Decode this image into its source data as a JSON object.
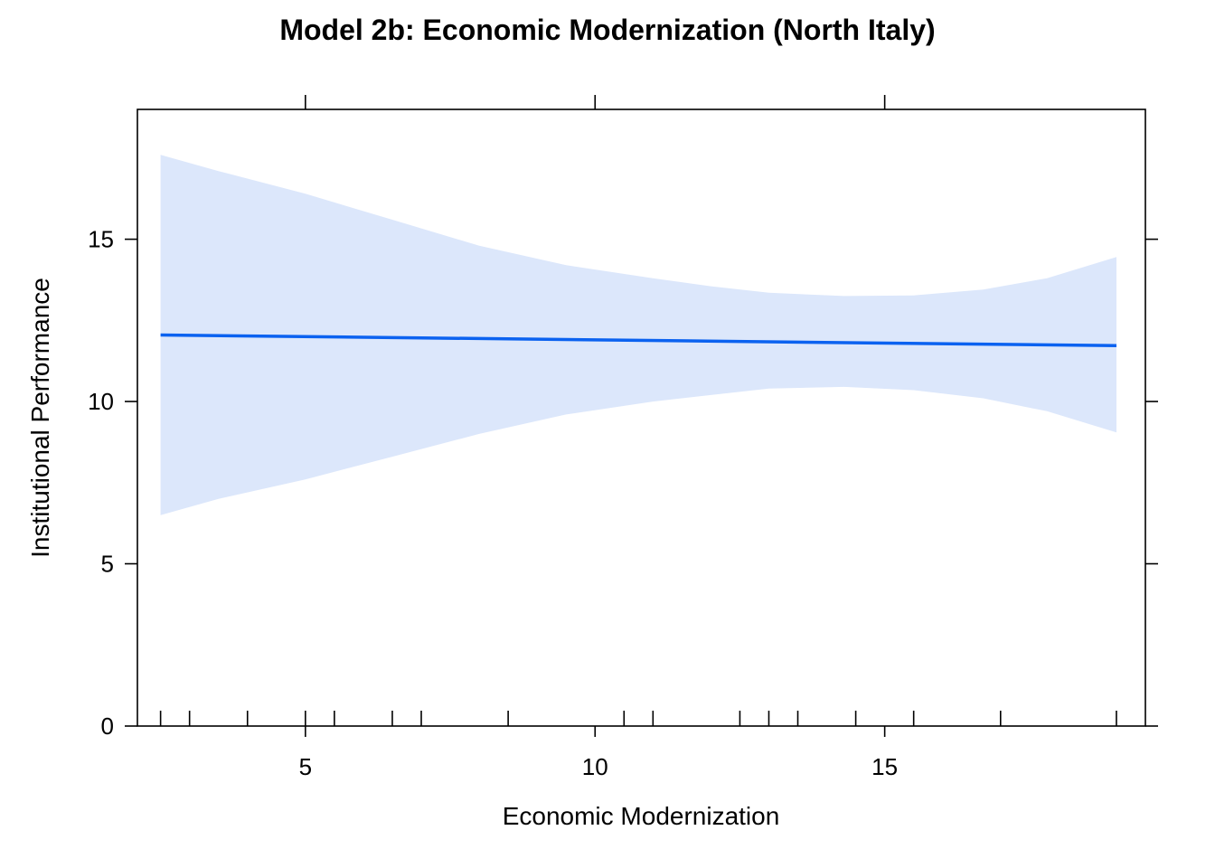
{
  "chart_data": {
    "type": "line",
    "title": "Model 2b: Economic Modernization (North Italy)",
    "xlabel": "Economic Modernization",
    "ylabel": "Institutional Performance",
    "xlim": [
      2.1,
      19.5
    ],
    "ylim": [
      0,
      19
    ],
    "xticks": [
      5,
      10,
      15
    ],
    "yticks": [
      0,
      5,
      10,
      15
    ],
    "grid": false,
    "legend": "none",
    "series": [
      {
        "x": [
          2.5,
          19.0
        ],
        "y": [
          12.05,
          11.72
        ],
        "color": "#0b62f0"
      }
    ],
    "band": {
      "x": [
        2.5,
        3.5,
        5.0,
        6.5,
        8.0,
        9.5,
        11.0,
        12.0,
        13.0,
        14.3,
        15.5,
        16.7,
        17.8,
        19.0
      ],
      "lower": [
        6.5,
        7.0,
        7.6,
        8.3,
        9.0,
        9.6,
        10.0,
        10.2,
        10.4,
        10.45,
        10.35,
        10.1,
        9.7,
        9.05
      ],
      "upper": [
        17.6,
        17.1,
        16.4,
        15.6,
        14.8,
        14.2,
        13.8,
        13.55,
        13.35,
        13.25,
        13.27,
        13.45,
        13.8,
        14.45
      ],
      "color": "#dce7fb"
    },
    "rug": [
      2.5,
      3.0,
      4.0,
      5.0,
      5.5,
      6.5,
      7.0,
      8.5,
      10.5,
      11.0,
      12.5,
      13.0,
      13.5,
      14.5,
      15.5,
      17.0,
      19.0
    ]
  }
}
